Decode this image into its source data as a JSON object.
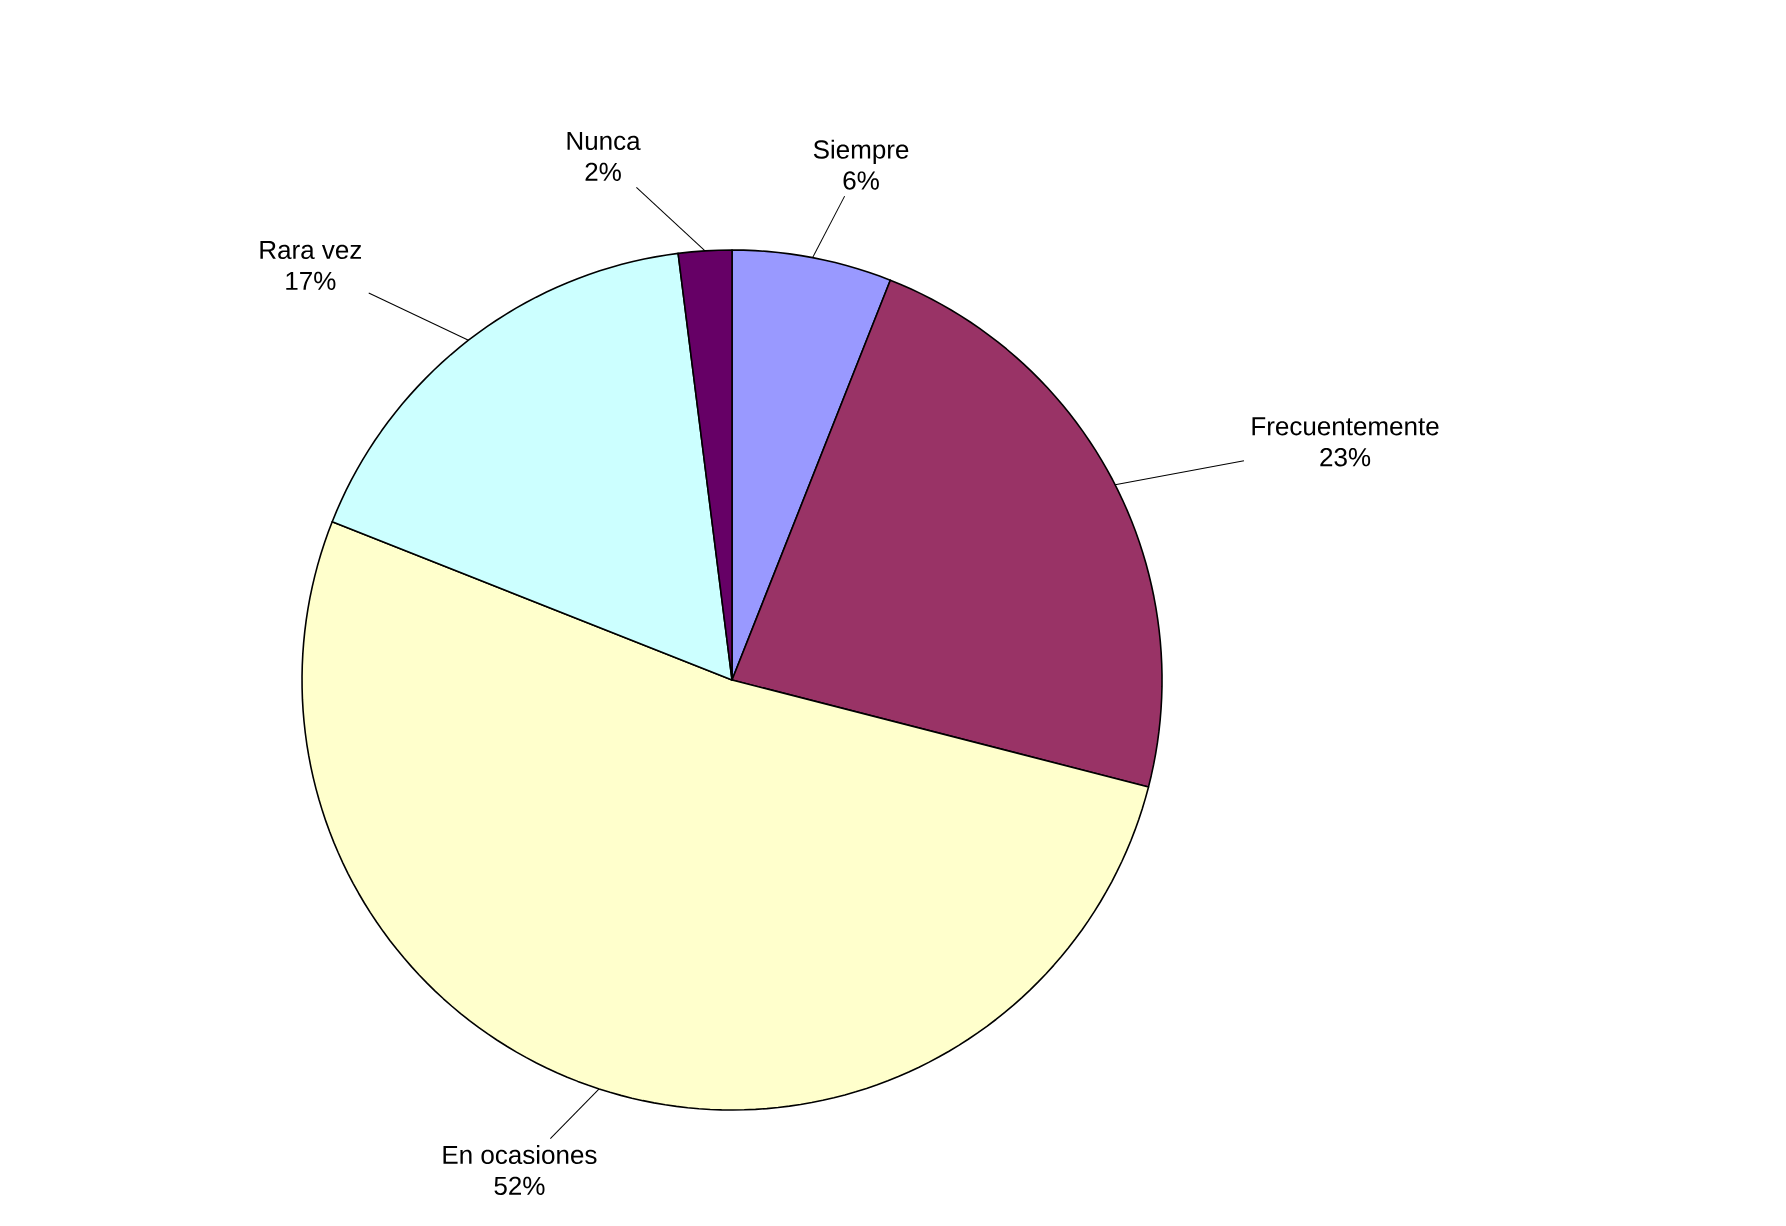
{
  "chart_data": {
    "type": "pie",
    "categories": [
      "Siempre",
      "Frecuentemente",
      "En ocasiones",
      "Rara vez",
      "Nunca"
    ],
    "values": [
      6,
      23,
      52,
      17,
      2
    ],
    "value_labels": [
      "6%",
      "23%",
      "52%",
      "17%",
      "2%"
    ],
    "colors": [
      "#9999ff",
      "#993366",
      "#ffffcc",
      "#ccffff",
      "#660066"
    ]
  }
}
